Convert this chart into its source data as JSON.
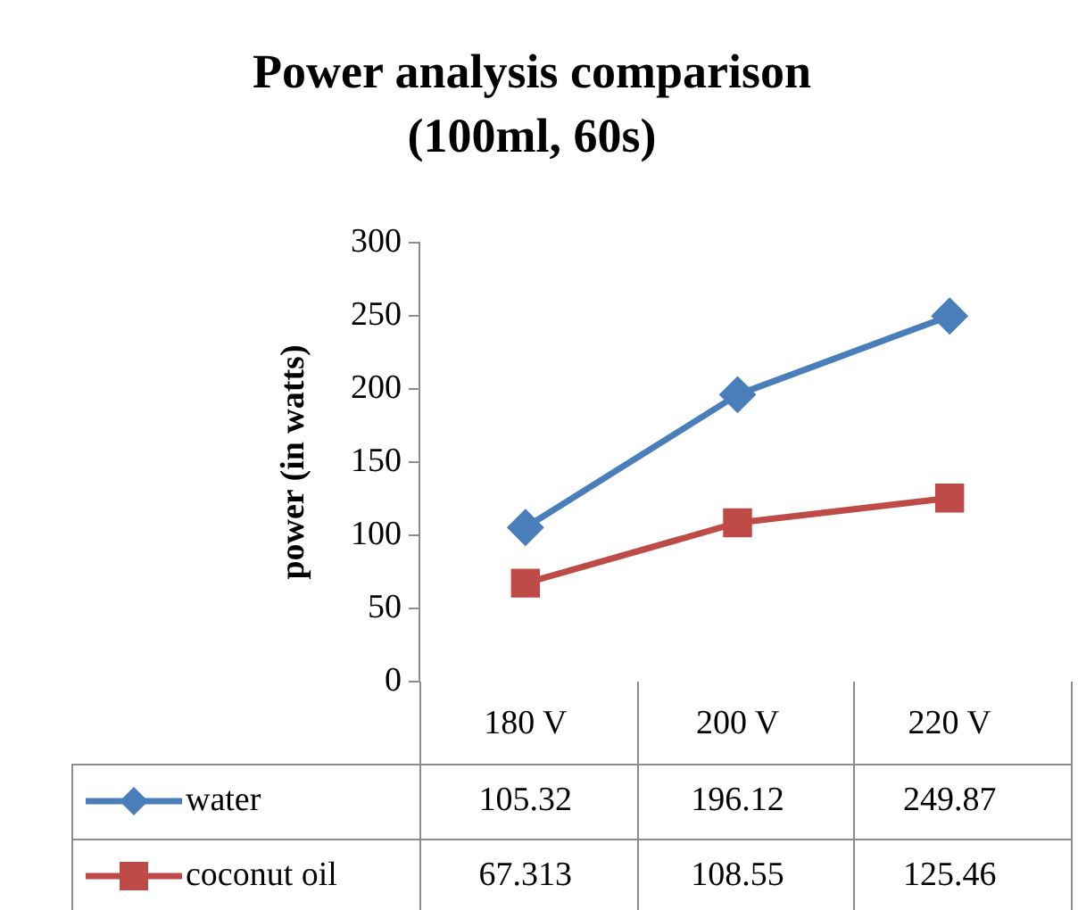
{
  "chart_data": {
    "type": "line",
    "title": "Power analysis comparison (100ml, 60s)",
    "ylabel": "power (in watts)",
    "categories": [
      "180 V",
      "200 V",
      "220 V"
    ],
    "series": [
      {
        "name": "water",
        "color": "#4a7ebb",
        "marker": "diamond",
        "values": [
          105.32,
          196.12,
          249.87
        ]
      },
      {
        "name": "coconut oil",
        "color": "#be4b48",
        "marker": "square",
        "values": [
          67.313,
          108.55,
          125.46
        ]
      }
    ],
    "ylim": [
      0,
      300
    ],
    "yticks": [
      0,
      50,
      100,
      150,
      200,
      250,
      300
    ],
    "grid": false,
    "legend": "bottom",
    "data_labels": true
  }
}
